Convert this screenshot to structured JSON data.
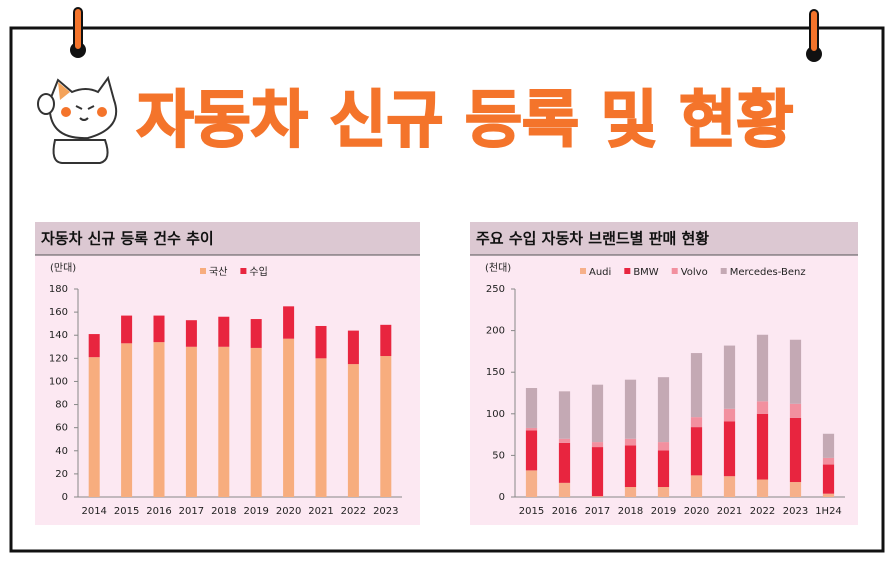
{
  "header": {
    "title": "자동차 신규 등록 및 현황"
  },
  "chart_data": [
    {
      "type": "bar",
      "stacked": true,
      "title": "자동차 신규 등록 건수 추이",
      "y_label": "(만대)",
      "categories": [
        "2014",
        "2015",
        "2016",
        "2017",
        "2018",
        "2019",
        "2020",
        "2021",
        "2022",
        "2023"
      ],
      "series": [
        {
          "name": "국산",
          "color": "#f7ad7e",
          "values": [
            121,
            133,
            134,
            130,
            130,
            129,
            137,
            120,
            115,
            122
          ]
        },
        {
          "name": "수입",
          "color": "#e8253f",
          "values": [
            20,
            24,
            23,
            23,
            26,
            25,
            28,
            28,
            29,
            27
          ]
        }
      ],
      "ylim": [
        0,
        180
      ],
      "yticks": [
        0,
        20,
        40,
        60,
        80,
        100,
        120,
        140,
        160,
        180
      ]
    },
    {
      "type": "bar",
      "stacked": true,
      "title": "주요 수입 자동차 브랜드별 판매 현황",
      "y_label": "(천대)",
      "categories": [
        "2015",
        "2016",
        "2017",
        "2018",
        "2019",
        "2020",
        "2021",
        "2022",
        "2023",
        "1H24"
      ],
      "series": [
        {
          "name": "Audi",
          "color": "#f6b08a",
          "values": [
            32,
            17,
            1,
            12,
            12,
            26,
            25,
            21,
            18,
            4
          ]
        },
        {
          "name": "BMW",
          "color": "#e8253f",
          "values": [
            48,
            48,
            59,
            50,
            44,
            58,
            66,
            79,
            77,
            35
          ]
        },
        {
          "name": "Volvo",
          "color": "#f2909f",
          "values": [
            3,
            5,
            6,
            8,
            10,
            12,
            15,
            15,
            17,
            8
          ]
        },
        {
          "name": "Mercedes-Benz",
          "color": "#c4a9b4",
          "values": [
            48,
            57,
            69,
            71,
            78,
            77,
            76,
            80,
            77,
            29
          ]
        }
      ],
      "ylim": [
        0,
        250
      ],
      "yticks": [
        0,
        50,
        100,
        150,
        200,
        250
      ]
    }
  ]
}
